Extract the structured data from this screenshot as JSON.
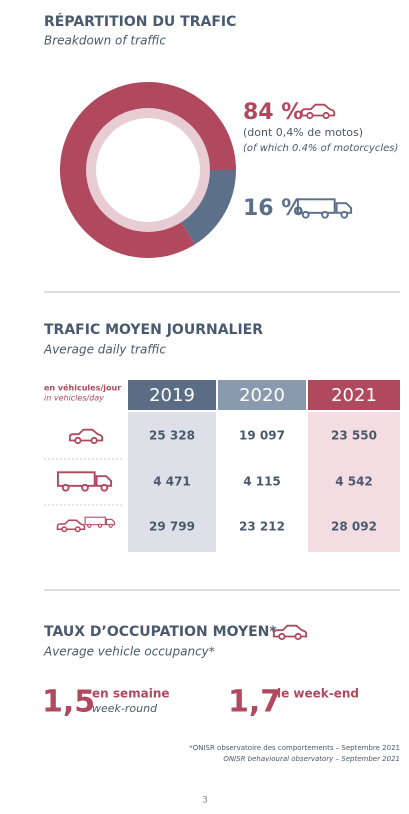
{
  "breakdown": {
    "title": "RÉPARTITION DU TRAFIC",
    "subtitle": "Breakdown of traffic",
    "type": "pie",
    "values": [
      84,
      16
    ],
    "value_labels": [
      "84 %",
      "16 %"
    ],
    "colors": [
      "#b0485e",
      "#5c7089"
    ],
    "note_fr": "(dont 0,4% de motos)",
    "note_en": "(of which 0.4% of motorcycles)"
  },
  "daily": {
    "title": "TRAFIC MOYEN JOURNALIER",
    "subtitle": "Average daily traffic",
    "unit_fr": "en véhicules/jour",
    "unit_en": "in vehicles/day",
    "columns": [
      "2019",
      "2020",
      "2021"
    ],
    "rows": [
      [
        "25 328",
        "19 097",
        "23 550"
      ],
      [
        "4 471",
        "4 115",
        "4 542"
      ],
      [
        "29 799",
        "23 212",
        "28 092"
      ]
    ]
  },
  "occupancy": {
    "title": "TAUX D’OCCUPATION MOYEN*",
    "subtitle": "Average vehicle occupancy*",
    "week": {
      "value": "1,5",
      "label_fr": "en semaine",
      "label_en": "week-round"
    },
    "weekend": {
      "value": "1,7",
      "label_fr": "le week-end"
    }
  },
  "footnote": [
    "*ONISR observatoire des comportements – Septembre 2021",
    "ONISR behavioural observatory – September 2021"
  ],
  "page_number": "3"
}
